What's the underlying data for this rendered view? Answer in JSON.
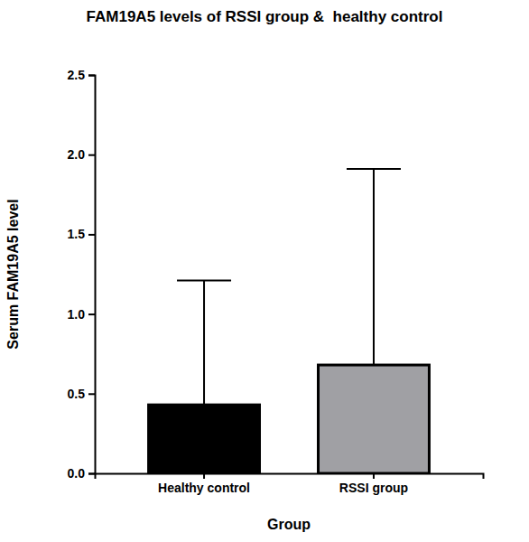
{
  "chart_data": {
    "type": "bar",
    "title": "FAM19A5 levels of RSSI group &  healthy control",
    "x_label": "Group",
    "y_label": "Serum FAM19A5 level",
    "categories": [
      "Healthy control",
      "RSSI group"
    ],
    "values": [
      0.43,
      0.68
    ],
    "errors": [
      0.78,
      1.23
    ],
    "colors": [
      "#000000",
      "#a0a0a4"
    ],
    "ylim": [
      0,
      2.5
    ],
    "yticks": [
      {
        "value": 0,
        "label": "0.0"
      },
      0.5,
      {
        "value": 1,
        "label": "1.0"
      },
      1.5,
      {
        "value": 2,
        "label": "2.0"
      },
      2.5
    ]
  }
}
